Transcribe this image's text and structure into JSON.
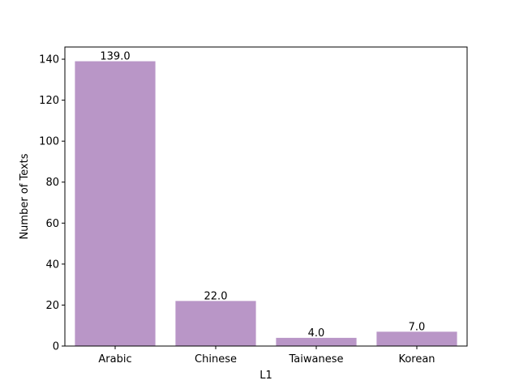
{
  "chart_data": {
    "type": "bar",
    "title": "",
    "xlabel": "L1",
    "ylabel": "Number of Texts",
    "categories": [
      "Arabic",
      "Chinese",
      "Taiwanese",
      "Korean"
    ],
    "values": [
      139.0,
      22.0,
      4.0,
      7.0
    ],
    "data_labels": [
      "139.0",
      "22.0",
      "4.0",
      "7.0"
    ],
    "ylim": [
      0,
      145.95
    ],
    "yticks": [
      0,
      20,
      40,
      60,
      80,
      100,
      120,
      140
    ],
    "grid": false,
    "bar_color": "#b996c7"
  }
}
